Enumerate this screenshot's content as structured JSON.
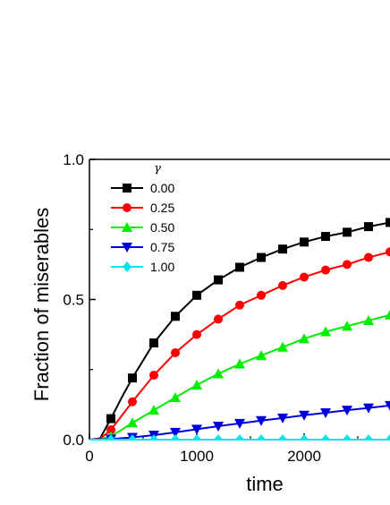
{
  "chart_data": {
    "type": "line",
    "title": "",
    "xlabel": "time",
    "ylabel": "Fraction of miserables",
    "xlim": [
      0,
      2800
    ],
    "ylim": [
      0,
      1.0
    ],
    "xticks": [
      "0",
      "1000",
      "2000"
    ],
    "yticks": [
      "0.0",
      "0.5",
      "1.0"
    ],
    "legend": {
      "title": "γ",
      "position": "top-left"
    },
    "grid": false,
    "series": [
      {
        "name": "0.00",
        "color": "#000000",
        "marker": "square",
        "x": [
          0,
          100,
          200,
          300,
          400,
          600,
          800,
          1000,
          1200,
          1400,
          1600,
          1800,
          2000,
          2200,
          2400,
          2600,
          2800
        ],
        "y": [
          0.0,
          0.005,
          0.075,
          0.15,
          0.22,
          0.345,
          0.44,
          0.515,
          0.57,
          0.615,
          0.65,
          0.68,
          0.705,
          0.725,
          0.74,
          0.76,
          0.775
        ]
      },
      {
        "name": "0.25",
        "color": "#ff0000",
        "marker": "circle",
        "x": [
          0,
          100,
          200,
          300,
          400,
          600,
          800,
          1000,
          1200,
          1400,
          1600,
          1800,
          2000,
          2200,
          2400,
          2600,
          2800
        ],
        "y": [
          0.0,
          0.003,
          0.035,
          0.085,
          0.135,
          0.23,
          0.31,
          0.375,
          0.43,
          0.48,
          0.515,
          0.55,
          0.58,
          0.605,
          0.625,
          0.65,
          0.67
        ]
      },
      {
        "name": "0.50",
        "color": "#00ee00",
        "marker": "triangle-up",
        "x": [
          0,
          100,
          200,
          300,
          400,
          600,
          800,
          1000,
          1200,
          1400,
          1600,
          1800,
          2000,
          2200,
          2400,
          2600,
          2800
        ],
        "y": [
          0.0,
          0.001,
          0.012,
          0.035,
          0.06,
          0.105,
          0.15,
          0.195,
          0.235,
          0.27,
          0.3,
          0.33,
          0.36,
          0.385,
          0.405,
          0.425,
          0.445
        ]
      },
      {
        "name": "0.75",
        "color": "#0000dd",
        "marker": "triangle-down",
        "x": [
          0,
          200,
          400,
          600,
          800,
          1000,
          1200,
          1400,
          1600,
          1800,
          2000,
          2200,
          2400,
          2600,
          2800
        ],
        "y": [
          0.0,
          0.002,
          0.008,
          0.016,
          0.026,
          0.037,
          0.048,
          0.058,
          0.068,
          0.077,
          0.087,
          0.096,
          0.105,
          0.113,
          0.122
        ]
      },
      {
        "name": "1.00",
        "color": "#00e5ee",
        "marker": "diamond",
        "x": [
          0,
          200,
          400,
          600,
          800,
          1000,
          1200,
          1400,
          1600,
          1800,
          2000,
          2200,
          2400,
          2600,
          2800
        ],
        "y": [
          0.0,
          0.0,
          0.0,
          0.0,
          0.0,
          0.0,
          0.0,
          0.0,
          0.0,
          0.0,
          0.0,
          0.0,
          0.0,
          0.0,
          0.0
        ]
      }
    ]
  }
}
